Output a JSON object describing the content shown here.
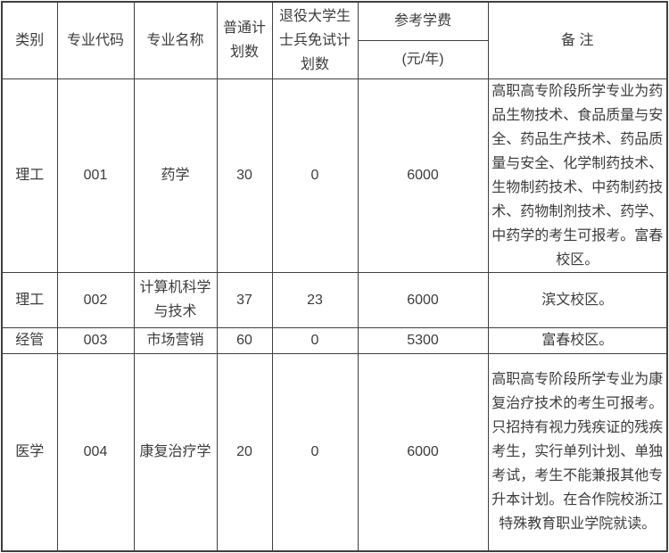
{
  "table": {
    "headers": {
      "category": "类别",
      "major_code": "专业代码",
      "major_name": "专业名称",
      "regular_plan": "普通计划数",
      "veteran_exempt_plan": "退役大学生士兵免试计划数",
      "tuition": "参考学费",
      "tuition_unit": "(元/年)",
      "remarks": "备 注"
    },
    "rows": [
      {
        "category": "理工",
        "code": "001",
        "major": "药学",
        "regular_plan": "30",
        "veteran_plan": "0",
        "tuition": "6000",
        "remark": "高职高专阶段所学专业为药品生物技术、食品质量与安全、药品生产技术、药品质量与安全、化学制药技术、生物制药技术、中药制药技术、药物制剂技术、药学、中药学的考生可报考。富春校区。"
      },
      {
        "category": "理工",
        "code": "002",
        "major": "计算机科学与技术",
        "regular_plan": "37",
        "veteran_plan": "23",
        "tuition": "6000",
        "remark": "滨文校区。"
      },
      {
        "category": "经管",
        "code": "003",
        "major": "市场营销",
        "regular_plan": "60",
        "veteran_plan": "0",
        "tuition": "5300",
        "remark": "富春校区。"
      },
      {
        "category": "医学",
        "code": "004",
        "major": "康复治疗学",
        "regular_plan": "20",
        "veteran_plan": "0",
        "tuition": "6000",
        "remark": "高职高专阶段所学专业为康复治疗技术的考生可报考。只招持有视力残疾证的残疾考生，实行单列计划、单独考试，考生不能兼报其他专升本计划。在合作院校浙江特殊教育职业学院就读。"
      }
    ],
    "colors": {
      "border": "#3f3f3f",
      "text": "#3c3c3c",
      "background": "#ffffff"
    }
  }
}
